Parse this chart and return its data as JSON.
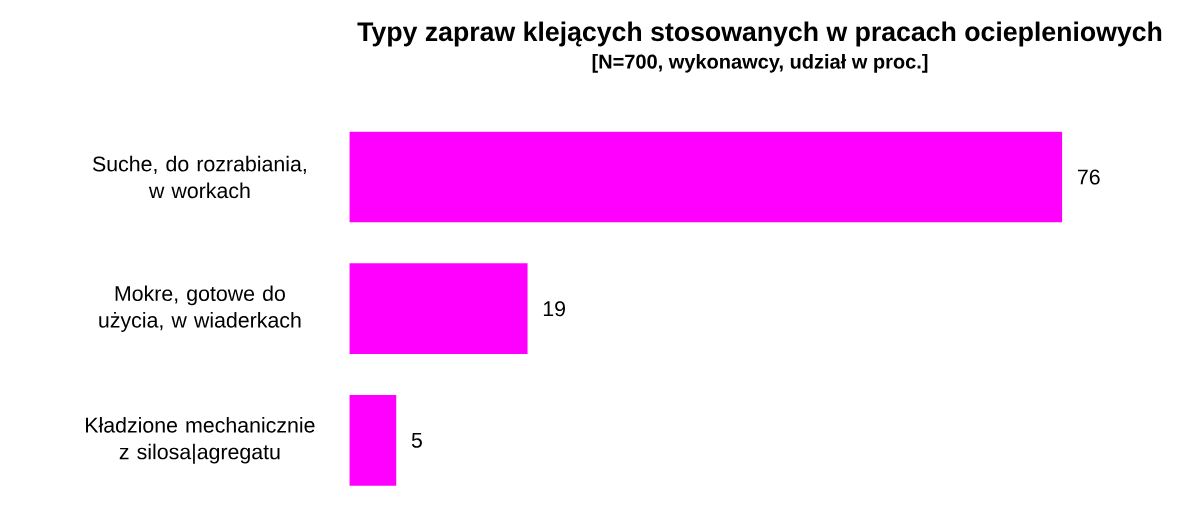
{
  "chart_data": {
    "type": "bar",
    "orientation": "horizontal",
    "title": "Typy zapraw klejących stosowanych w pracach ociepleniowych",
    "subtitle": "[N=700, wykonawcy, udział w proc.]",
    "categories": [
      "Suche, do rozrabiania, w workach",
      "Mokre, gotowe do użycia, w wiaderkach",
      "Kładzione mechanicznie z silosa|agregatu"
    ],
    "values": [
      76,
      19,
      5
    ],
    "color": "#ff00ff",
    "data_labels": true
  }
}
